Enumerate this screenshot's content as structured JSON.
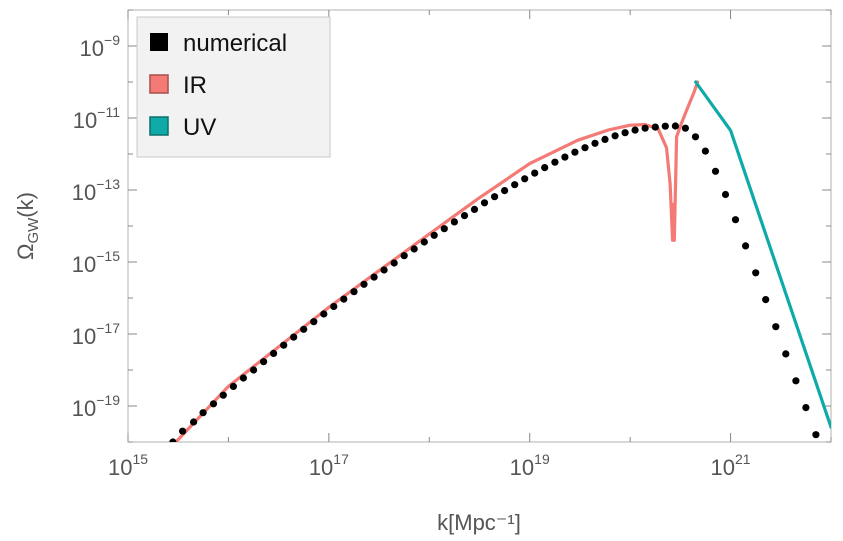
{
  "chart_data": {
    "type": "line",
    "xlabel": "k[Mpc⁻¹]",
    "ylabel": "Ω_GW(k)",
    "x_scale": "log",
    "y_scale": "log",
    "xlim": [
      1000000000000000.0,
      1e+22
    ],
    "ylim": [
      1e-20,
      1e-08
    ],
    "x_ticks": [
      {
        "value": 1000000000000000.0,
        "base": "10",
        "exp": "15"
      },
      {
        "value": 1e+17,
        "base": "10",
        "exp": "17"
      },
      {
        "value": 1e+19,
        "base": "10",
        "exp": "19"
      },
      {
        "value": 1e+21,
        "base": "10",
        "exp": "21"
      }
    ],
    "y_ticks": [
      {
        "value": 1e-19,
        "base": "10",
        "exp": "−19"
      },
      {
        "value": 1e-17,
        "base": "10",
        "exp": "−17"
      },
      {
        "value": 1e-15,
        "base": "10",
        "exp": "−15"
      },
      {
        "value": 1e-13,
        "base": "10",
        "exp": "−13"
      },
      {
        "value": 1e-11,
        "base": "10",
        "exp": "−11"
      },
      {
        "value": 1e-09,
        "base": "10",
        "exp": "−9"
      }
    ],
    "legend": {
      "placement": "top-left"
    },
    "series": [
      {
        "name": "numerical",
        "style": "dots",
        "color": "#000000",
        "x": [
          2800000000000000.0,
          3500000000000000.0,
          4500000000000000.0,
          5600000000000000.0,
          7100000000000000.0,
          8900000000000000.0,
          1.12e+16,
          1.41e+16,
          1.78e+16,
          2.24e+16,
          2.82e+16,
          3.55e+16,
          4.47e+16,
          5.62e+16,
          7.08e+16,
          8.91e+16,
          1.12e+17,
          1.41e+17,
          1.78e+17,
          2.24e+17,
          2.82e+17,
          3.55e+17,
          4.47e+17,
          5.62e+17,
          7.08e+17,
          8.91e+17,
          1.12e+18,
          1.41e+18,
          1.78e+18,
          2.24e+18,
          2.82e+18,
          3.55e+18,
          4.47e+18,
          5.62e+18,
          7.08e+18,
          8.91e+18,
          1.12e+19,
          1.41e+19,
          1.78e+19,
          2.24e+19,
          2.82e+19,
          3.55e+19,
          4.47e+19,
          5.62e+19,
          7.08e+19,
          8.91e+19,
          1.12e+20,
          1.41e+20,
          1.78e+20,
          2.24e+20,
          2.82e+20,
          3.55e+20,
          4.47e+20,
          5.62e+20,
          7.08e+20,
          8.91e+20,
          1.12e+21,
          1.41e+21,
          1.78e+21,
          2.24e+21,
          2.82e+21,
          3.55e+21,
          4.47e+21,
          5.62e+21,
          7.08e+21,
          8.91e+21
        ],
        "y": [
          1e-20,
          2e-20,
          3.6e-20,
          6.5e-20,
          1.15e-19,
          2e-19,
          3.5e-19,
          6e-19,
          1e-18,
          1.7e-18,
          2.9e-18,
          4.9e-18,
          8.2e-18,
          1.35e-17,
          2.2e-17,
          3.6e-17,
          5.8e-17,
          9.3e-17,
          1.5e-16,
          2.4e-16,
          3.8e-16,
          6e-16,
          9.4e-16,
          1.5e-15,
          2.3e-15,
          3.6e-15,
          5.5e-15,
          8.4e-15,
          1.3e-14,
          1.95e-14,
          2.9e-14,
          4.4e-14,
          6.5e-14,
          9.6e-14,
          1.4e-13,
          2.05e-13,
          2.95e-13,
          4.2e-13,
          5.9e-13,
          8.2e-13,
          1.12e-12,
          1.5e-12,
          1.98e-12,
          2.55e-12,
          3.2e-12,
          3.9e-12,
          4.6e-12,
          5.2e-12,
          5.6e-12,
          5.9e-12,
          6e-12,
          5.2e-12,
          3e-12,
          1.2e-12,
          3.3e-13,
          7.5e-14,
          1.5e-14,
          2.8e-15,
          5e-16,
          9e-17,
          1.6e-17,
          2.8e-18,
          5e-19,
          9e-20,
          1.6e-20,
          2.9e-21
        ]
      },
      {
        "name": "IR",
        "style": "line",
        "color": "#f47a76",
        "x": [
          3000000000000000.0,
          1e+16,
          1e+17,
          1e+18,
          3e+18,
          1e+19,
          3e+19,
          6e+19,
          1e+20,
          1.4e+20,
          1.9e+20,
          2.3e+20,
          2.5e+20,
          2.65e+20,
          2.7e+20,
          2.75e+20,
          2.9e+20,
          3.2e+20,
          3.7e+20,
          4.3e+20,
          4.7e+20
        ],
        "y": [
          1e-20,
          3.5e-19,
          5.5e-17,
          6e-15,
          5.5e-14,
          5.4e-13,
          2.4e-12,
          4.6e-12,
          6.3e-12,
          6.6e-12,
          5e-12,
          1.5e-12,
          1.5e-13,
          4e-15,
          4e-14,
          4e-15,
          3e-12,
          6.5e-12,
          1.8e-11,
          5e-11,
          1e-10
        ]
      },
      {
        "name": "UV",
        "style": "line",
        "color": "#0eaaa8",
        "x": [
          4.5e+20,
          1e+21,
          1e+22
        ],
        "y": [
          1e-10,
          4.5e-12,
          2.6e-20
        ]
      }
    ]
  }
}
